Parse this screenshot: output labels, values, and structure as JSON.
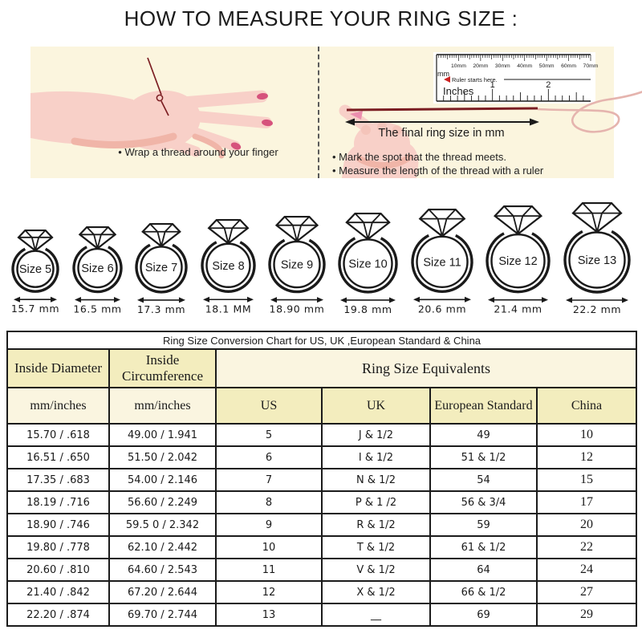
{
  "page": {
    "title": "HOW TO MEASURE YOUR RING SIZE :"
  },
  "steps": {
    "left_caption": "• Wrap a thread around your finger",
    "right_captions": [
      "• Mark the spot that the thread meets.",
      "• Measure the length of the thread with a ruler"
    ],
    "ruler": {
      "mm_labels": [
        "10mm",
        "20mm",
        "30mm",
        "40mm",
        "50mm",
        "60mm",
        "70mm"
      ],
      "mm_unit": "mm",
      "starts_here": "Ruler starts here.",
      "inches_label": "Inches",
      "inch_numbers": [
        "1",
        "2"
      ],
      "final_size_label": "The final ring size in mm"
    }
  },
  "rings": [
    {
      "label": "Size 5",
      "diameter": "15.7 mm"
    },
    {
      "label": "Size 6",
      "diameter": "16.5 mm"
    },
    {
      "label": "Size 7",
      "diameter": "17.3 mm"
    },
    {
      "label": "Size 8",
      "diameter": "18.1 MM"
    },
    {
      "label": "Size 9",
      "diameter": "18.90 mm"
    },
    {
      "label": "Size 10",
      "diameter": "19.8 mm"
    },
    {
      "label": "Size 11",
      "diameter": "20.6 mm"
    },
    {
      "label": "Size 12",
      "diameter": "21.4 mm"
    },
    {
      "label": "Size 13",
      "diameter": "22.2 mm"
    }
  ],
  "table": {
    "title": "Ring Size Conversion Chart for US, UK ,European Standard & China",
    "headers": {
      "group_diameter": "Inside Diameter",
      "group_circumference": "Inside Circumference",
      "group_equivalents": "Ring Size Equivalents",
      "sub_diameter": "mm/inches",
      "sub_circumference": "mm/inches",
      "sub_us": "US",
      "sub_uk": "UK",
      "sub_euro": "European Standard",
      "sub_china": "China"
    },
    "rows": [
      [
        "15.70 / .618",
        "49.00 / 1.941",
        "5",
        "J & 1/2",
        "49",
        "10"
      ],
      [
        "16.51 / .650",
        "51.50 / 2.042",
        "6",
        "I & 1/2",
        "51 & 1/2",
        "12"
      ],
      [
        "17.35 / .683",
        "54.00 / 2.146",
        "7",
        "N & 1/2",
        "54",
        "15"
      ],
      [
        "18.19 / .716",
        "56.60 / 2.249",
        "8",
        "P & 1 /2",
        "56 & 3/4",
        "17"
      ],
      [
        "18.90 / .746",
        "59.5 0 / 2.342",
        "9",
        "R & 1/2",
        "59",
        "20"
      ],
      [
        "19.80 / .778",
        "62.10 / 2.442",
        "10",
        "T & 1/2",
        "61 & 1/2",
        "22"
      ],
      [
        "20.60 / .810",
        "64.60 / 2.543",
        "11",
        "V & 1/2",
        "64",
        "24"
      ],
      [
        "21.40 / .842",
        "67.20 / 2.644",
        "12",
        "X & 1/2",
        "66 & 1/2",
        "27"
      ],
      [
        "22.20 / .874",
        "69.70 / 2.744",
        "13",
        "__",
        "69",
        "29"
      ]
    ]
  },
  "colors": {
    "ink": "#1a1a1a",
    "panel_bg": "#FBF5DE",
    "header_yellow": "#F3EDBE",
    "header_cream": "#FAF5E0",
    "thread_dark": "#7B1D22",
    "thread_light": "#E5B4AE",
    "skin": "#F8D0C8",
    "skin_shade": "#F0B5A8",
    "nail": "#D6527C",
    "marker_red": "#CC2222"
  }
}
